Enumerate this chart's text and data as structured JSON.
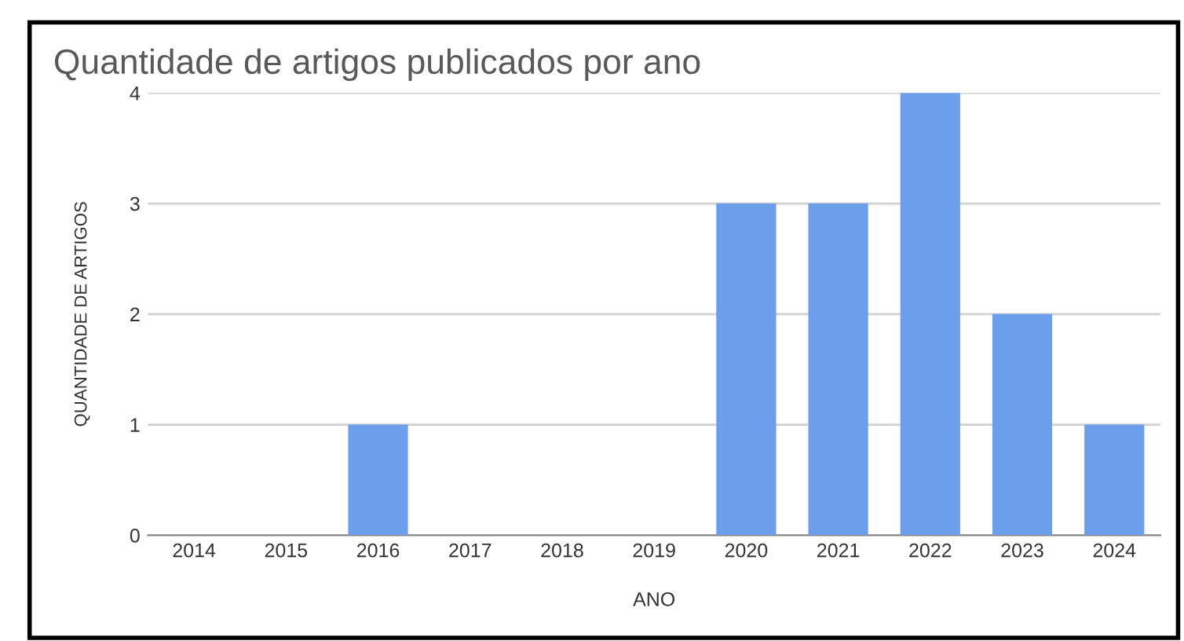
{
  "chart_data": {
    "type": "bar",
    "title": "Quantidade de artigos publicados por ano",
    "xlabel": "ANO",
    "ylabel": "QUANTIDADE DE ARTIGOS",
    "categories": [
      "2014",
      "2015",
      "2016",
      "2017",
      "2018",
      "2019",
      "2020",
      "2021",
      "2022",
      "2023",
      "2024"
    ],
    "values": [
      0,
      0,
      1,
      0,
      0,
      0,
      3,
      3,
      4,
      2,
      1
    ],
    "color": "#6d9eeb",
    "ylim": [
      0,
      4
    ],
    "yticks": [
      0,
      1,
      2,
      3,
      4
    ],
    "grid": "y"
  }
}
